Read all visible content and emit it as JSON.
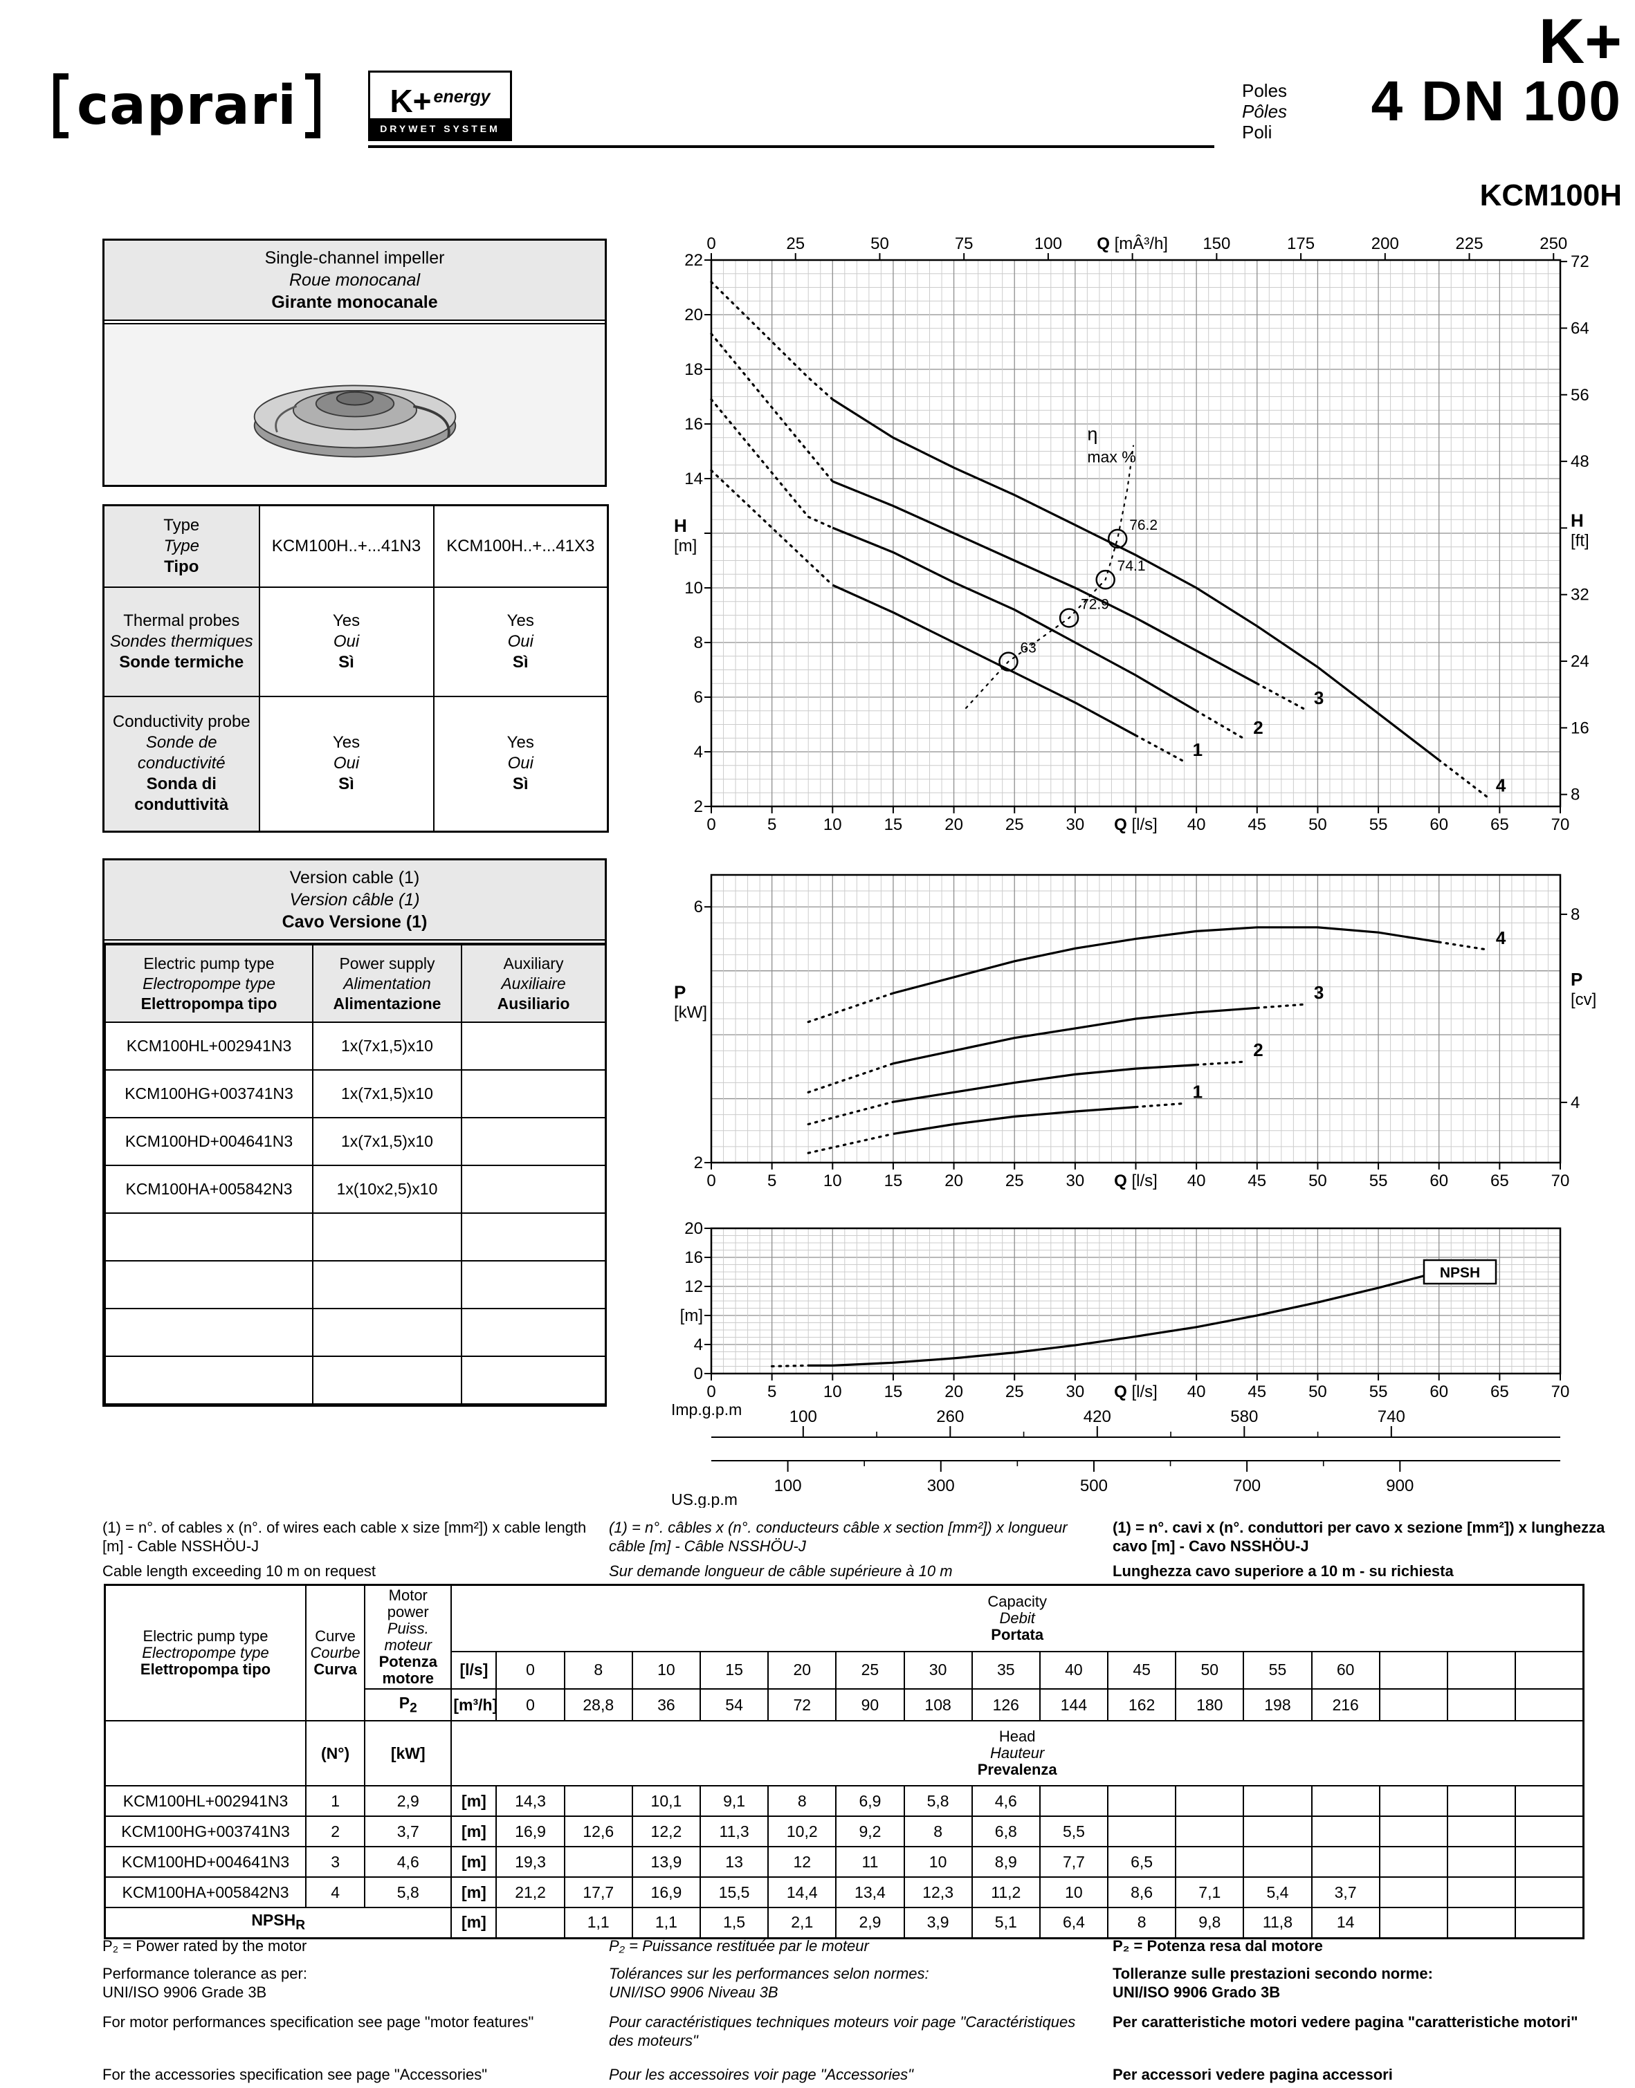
{
  "header": {
    "brand": "caprari",
    "logo_k": "K+",
    "logo_energy": "energy",
    "logo_drywet": "DRYWET SYSTEM",
    "series": "K+",
    "poles": [
      "Poles",
      "Pôles",
      "Poli"
    ],
    "size": "4 DN 100",
    "model": "KCM100H"
  },
  "impeller": {
    "lines": [
      "Single-channel impeller",
      "Roue monocanal",
      "Girante monocanale"
    ]
  },
  "type_table": {
    "r1": {
      "label": [
        "Type",
        "Type",
        "Tipo"
      ],
      "v1": "KCM100H..+...41N3",
      "v2": "KCM100H..+...41X3"
    },
    "r2": {
      "label": [
        "Thermal probes",
        "Sondes thermiques",
        "Sonde termiche"
      ]
    },
    "r3": {
      "label": [
        "Conductivity probe",
        "Sonde de conductivité",
        "Sonda di conduttività"
      ]
    },
    "yes": [
      "Yes",
      "Oui",
      "Sì"
    ]
  },
  "cable_table": {
    "title": [
      "Version cable (1)",
      "Version câble (1)",
      "Cavo Versione (1)"
    ],
    "cols": [
      [
        "Electric pump type",
        "Electropompe type",
        "Elettropompa tipo"
      ],
      [
        "Power supply",
        "Alimentation",
        "Alimentazione"
      ],
      [
        "Auxiliary",
        "Auxiliaire",
        "Ausiliario"
      ]
    ],
    "rows": [
      [
        "KCM100HL+002941N3",
        "1x(7x1,5)x10",
        ""
      ],
      [
        "KCM100HG+003741N3",
        "1x(7x1,5)x10",
        ""
      ],
      [
        "KCM100HD+004641N3",
        "1x(7x1,5)x10",
        ""
      ],
      [
        "KCM100HA+005842N3",
        "1x(10x2,5)x10",
        ""
      ]
    ],
    "empty_rows": 4
  },
  "cable_notes": {
    "en": [
      "(1) = n°. of cables x (n°. of wires each cable x size [mm²]) x cable length [m] - Cable NSSHÖU-J",
      "Cable length exceeding 10 m on request"
    ],
    "fr": [
      "(1) = n°. câbles x (n°. conducteurs câble x section [mm²]) x longueur câble [m] - Câble NSSHÖU-J",
      "Sur demande longueur de câble supérieure à 10 m"
    ],
    "it": [
      "(1) = n°. cavi x (n°. conduttori per cavo x sezione [mm²]) x lunghezza cavo [m] - Cavo NSSHÖU-J",
      "Lunghezza cavo superiore a 10 m - su richiesta"
    ]
  },
  "chart_data": [
    {
      "type": "line",
      "name": "head-capacity-curves",
      "x_top": {
        "label": "Q [mÂ³/h]",
        "ticks": [
          0,
          25,
          50,
          75,
          100,
          125,
          150,
          175,
          200,
          225,
          250
        ],
        "label_at": 125
      },
      "x_bottom": {
        "label": "Q [l/s]",
        "ticks": [
          0,
          5,
          10,
          15,
          20,
          25,
          30,
          35,
          40,
          45,
          50,
          55,
          60,
          65,
          70
        ],
        "label_at": 35,
        "range": [
          0,
          70
        ]
      },
      "y_left": {
        "label": "H [m]",
        "ticks": [
          2,
          4,
          6,
          8,
          10,
          12,
          14,
          16,
          18,
          20,
          22
        ],
        "label_at": 12,
        "range": [
          2,
          22
        ]
      },
      "y_right": {
        "label": "H [ft]",
        "ticks": [
          8,
          16,
          24,
          32,
          40,
          48,
          56,
          64,
          72
        ],
        "label_at": 40
      },
      "series": [
        {
          "name": "1",
          "x": [
            0,
            10,
            15,
            20,
            25,
            30,
            35
          ],
          "y": [
            14.3,
            10.1,
            9.1,
            8.0,
            6.9,
            5.8,
            4.6
          ]
        },
        {
          "name": "2",
          "x": [
            0,
            8,
            10,
            15,
            20,
            25,
            30,
            35,
            40
          ],
          "y": [
            16.9,
            12.6,
            12.2,
            11.3,
            10.2,
            9.2,
            8.0,
            6.8,
            5.5
          ]
        },
        {
          "name": "3",
          "x": [
            0,
            10,
            15,
            20,
            25,
            30,
            35,
            40,
            45
          ],
          "y": [
            19.3,
            13.9,
            13.0,
            12.0,
            11.0,
            10.0,
            8.9,
            7.7,
            6.5
          ]
        },
        {
          "name": "4",
          "x": [
            0,
            8,
            10,
            15,
            20,
            25,
            30,
            35,
            40,
            45,
            50,
            55,
            60
          ],
          "y": [
            21.2,
            17.7,
            16.9,
            15.5,
            14.4,
            13.4,
            12.3,
            11.2,
            10.0,
            8.6,
            7.1,
            5.4,
            3.7
          ]
        }
      ],
      "efficiency_markers": [
        {
          "label": "63",
          "q": 24.5,
          "h": 7.3
        },
        {
          "label": "72.9",
          "q": 29.5,
          "h": 8.9
        },
        {
          "label": "74.1",
          "q": 32.5,
          "h": 10.3
        },
        {
          "label": "76.2",
          "q": 33.5,
          "h": 11.8
        }
      ],
      "efficiency_label_1": "η",
      "efficiency_label_2": "max %"
    },
    {
      "type": "line",
      "name": "p2-power-curves",
      "y_left": {
        "label": "P [kW]",
        "ticks": [
          2,
          6
        ],
        "range": [
          2,
          6.5
        ]
      },
      "y_right": {
        "label": "P [cv]",
        "ticks": [
          4,
          8
        ]
      },
      "series": [
        {
          "name": "1",
          "x": [
            8,
            15,
            20,
            25,
            30,
            35
          ],
          "y": [
            2.15,
            2.45,
            2.6,
            2.72,
            2.8,
            2.87
          ]
        },
        {
          "name": "2",
          "x": [
            8,
            15,
            20,
            25,
            30,
            35,
            40
          ],
          "y": [
            2.6,
            2.95,
            3.1,
            3.25,
            3.38,
            3.47,
            3.53
          ]
        },
        {
          "name": "3",
          "x": [
            8,
            15,
            20,
            25,
            30,
            35,
            40,
            45
          ],
          "y": [
            3.1,
            3.55,
            3.75,
            3.95,
            4.1,
            4.25,
            4.35,
            4.42
          ]
        },
        {
          "name": "4",
          "x": [
            8,
            15,
            20,
            25,
            30,
            35,
            40,
            45,
            50,
            55,
            60
          ],
          "y": [
            4.2,
            4.65,
            4.9,
            5.15,
            5.35,
            5.5,
            5.62,
            5.68,
            5.68,
            5.6,
            5.45
          ]
        }
      ]
    },
    {
      "type": "line",
      "name": "npsh-curve",
      "y_left": {
        "label": "[m]",
        "ticks": [
          0,
          4,
          8,
          12,
          16,
          20
        ],
        "label_at": 8,
        "range": [
          0,
          20
        ]
      },
      "box_label": "NPSH",
      "series": [
        {
          "name": "NPSH",
          "x": [
            5,
            8,
            10,
            15,
            20,
            25,
            30,
            35,
            40,
            45,
            50,
            55,
            60
          ],
          "y": [
            1.0,
            1.1,
            1.1,
            1.5,
            2.1,
            2.9,
            3.9,
            5.1,
            6.4,
            8.0,
            9.8,
            11.8,
            14.0
          ]
        }
      ]
    },
    {
      "type": "scale",
      "imp": {
        "label": "Imp.g.p.m",
        "ticks": [
          100,
          260,
          420,
          580,
          740
        ]
      },
      "us": {
        "label": "US.g.p.m",
        "ticks": [
          100,
          300,
          500,
          700,
          900
        ]
      }
    }
  ],
  "selection_table": {
    "pump_col": [
      "Electric pump type",
      "Electropompe type",
      "Elettropompa tipo"
    ],
    "curve_col": [
      "Curve",
      "Courbe",
      "Curva"
    ],
    "motor_col": [
      "Motor power",
      "Puiss. moteur",
      "Potenza motore"
    ],
    "capacity": [
      "Capacity",
      "Debit",
      "Portata"
    ],
    "head": [
      "Head",
      "Hauteur",
      "Prevalenza"
    ],
    "p2_label": "P",
    "p2_sub": "2",
    "curve_unit": "(N°)",
    "power_unit": "[kW]",
    "ls_unit": "[l/s]",
    "m3h_unit": "[m³/h]",
    "m_unit": "[m]",
    "ls_values": [
      "0",
      "8",
      "10",
      "15",
      "20",
      "25",
      "30",
      "35",
      "40",
      "45",
      "50",
      "55",
      "60",
      "",
      "",
      ""
    ],
    "m3h_values": [
      "0",
      "28,8",
      "36",
      "54",
      "72",
      "90",
      "108",
      "126",
      "144",
      "162",
      "180",
      "198",
      "216",
      "",
      "",
      ""
    ],
    "rows": [
      {
        "name": "KCM100HL+002941N3",
        "curve": "1",
        "power": "2,9",
        "heads": [
          "14,3",
          "",
          "10,1",
          "9,1",
          "8",
          "6,9",
          "5,8",
          "4,6",
          "",
          "",
          "",
          "",
          "",
          "",
          "",
          ""
        ]
      },
      {
        "name": "KCM100HG+003741N3",
        "curve": "2",
        "power": "3,7",
        "heads": [
          "16,9",
          "12,6",
          "12,2",
          "11,3",
          "10,2",
          "9,2",
          "8",
          "6,8",
          "5,5",
          "",
          "",
          "",
          "",
          "",
          "",
          ""
        ]
      },
      {
        "name": "KCM100HD+004641N3",
        "curve": "3",
        "power": "4,6",
        "heads": [
          "19,3",
          "",
          "13,9",
          "13",
          "12",
          "11",
          "10",
          "8,9",
          "7,7",
          "6,5",
          "",
          "",
          "",
          "",
          "",
          ""
        ]
      },
      {
        "name": "KCM100HA+005842N3",
        "curve": "4",
        "power": "5,8",
        "heads": [
          "21,2",
          "17,7",
          "16,9",
          "15,5",
          "14,4",
          "13,4",
          "12,3",
          "11,2",
          "10",
          "8,6",
          "7,1",
          "5,4",
          "3,7",
          "",
          "",
          ""
        ]
      }
    ],
    "npsh": {
      "label": "NPSH",
      "sub": "R",
      "values": [
        "",
        "1,1",
        "1,1",
        "1,5",
        "2,1",
        "2,9",
        "3,9",
        "5,1",
        "6,4",
        "8",
        "9,8",
        "11,8",
        "14",
        "",
        "",
        ""
      ]
    }
  },
  "footer": {
    "en": [
      "P₂ = Power rated by the motor",
      "Performance tolerance as per:",
      "UNI/ISO 9906 Grade 3B",
      "For motor performances specification see page \"motor features\"",
      "For the accessories specification see page \"Accessories\""
    ],
    "fr": [
      "P₂ = Puissance restituée par le moteur",
      "Tolérances sur les performances selon normes:",
      "UNI/ISO 9906 Niveau 3B",
      "Pour caractéristiques techniques moteurs voir page \"Caractéristiques des moteurs\"",
      "Pour les accessoires voir page \"Accessories\""
    ],
    "it": [
      "P₂ = Potenza resa dal motore",
      "Tolleranze sulle prestazioni secondo norme:",
      "UNI/ISO 9906 Grado 3B",
      "Per caratteristiche motori vedere pagina \"caratteristiche motori\"",
      "Per accessori vedere pagina accessori"
    ]
  }
}
